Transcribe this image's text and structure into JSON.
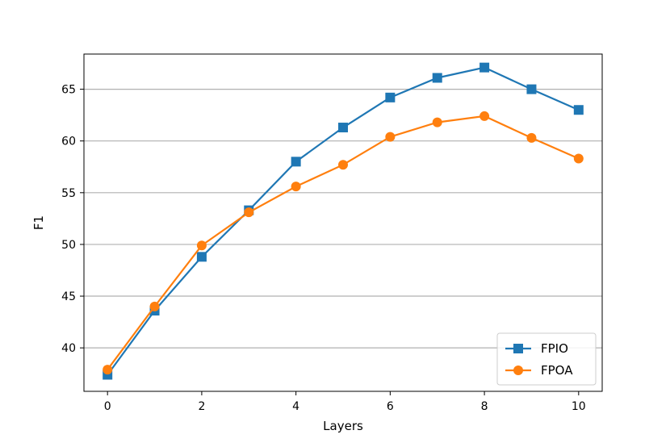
{
  "chart_data": {
    "type": "line",
    "title": "",
    "xlabel": "Layers",
    "ylabel": "F1",
    "x": [
      0,
      1,
      2,
      3,
      4,
      5,
      6,
      7,
      8,
      9,
      10
    ],
    "xlim": [
      -0.5,
      10.5
    ],
    "ylim": [
      35.8,
      68.4
    ],
    "xticks": [
      0,
      2,
      4,
      6,
      8,
      10
    ],
    "yticks": [
      40,
      45,
      50,
      55,
      60,
      65
    ],
    "grid": "horizontal",
    "legend_position": "lower-right",
    "series": [
      {
        "name": "FPIO",
        "color": "#1f77b4",
        "marker": "square",
        "values": [
          37.4,
          43.6,
          48.8,
          53.3,
          58.0,
          61.3,
          64.2,
          66.1,
          67.1,
          65.0,
          63.0
        ]
      },
      {
        "name": "FPOA",
        "color": "#ff7f0e",
        "marker": "circle",
        "values": [
          37.9,
          44.0,
          49.9,
          53.1,
          55.6,
          57.7,
          60.4,
          61.8,
          62.4,
          60.3,
          58.3
        ]
      }
    ]
  }
}
